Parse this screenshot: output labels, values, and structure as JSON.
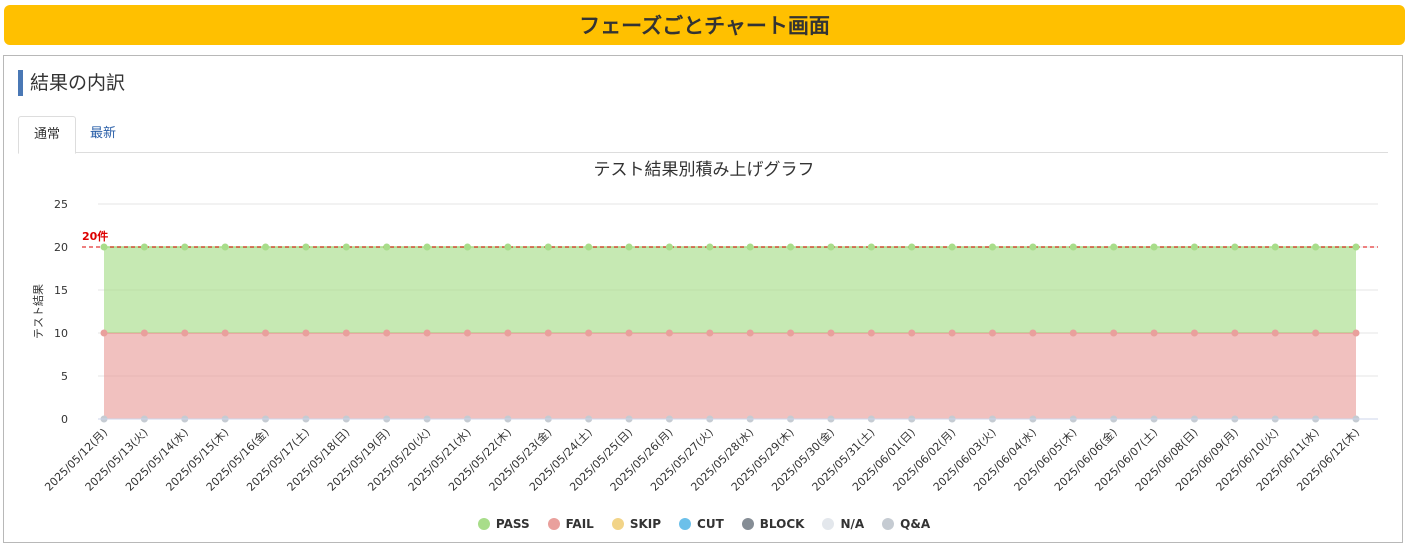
{
  "header": {
    "title": "フェーズごとチャート画面"
  },
  "section": {
    "title": "結果の内訳"
  },
  "tabs": [
    {
      "label": "通常",
      "active": true
    },
    {
      "label": "最新",
      "active": false
    }
  ],
  "colors": {
    "banner": "#ffc000",
    "accent_bar": "#4a78b5",
    "threshold": "#dd0000",
    "grid": "#e6e6e6"
  },
  "chart_data": {
    "type": "area",
    "stacked": true,
    "title": "テスト結果別積み上げグラフ",
    "xlabel": "",
    "ylabel": "テスト結果",
    "ylim": [
      0,
      25
    ],
    "yticks": [
      0,
      5,
      10,
      15,
      20,
      25
    ],
    "grid": true,
    "legend_position": "bottom",
    "threshold": {
      "value": 20,
      "label": "20件"
    },
    "categories": [
      "2025/05/12(月)",
      "2025/05/13(火)",
      "2025/05/14(水)",
      "2025/05/15(木)",
      "2025/05/16(金)",
      "2025/05/17(土)",
      "2025/05/18(日)",
      "2025/05/19(月)",
      "2025/05/20(火)",
      "2025/05/21(水)",
      "2025/05/22(木)",
      "2025/05/23(金)",
      "2025/05/24(土)",
      "2025/05/25(日)",
      "2025/05/26(月)",
      "2025/05/27(火)",
      "2025/05/28(水)",
      "2025/05/29(木)",
      "2025/05/30(金)",
      "2025/05/31(土)",
      "2025/06/01(日)",
      "2025/06/02(月)",
      "2025/06/03(火)",
      "2025/06/04(水)",
      "2025/06/05(木)",
      "2025/06/06(金)",
      "2025/06/07(土)",
      "2025/06/08(日)",
      "2025/06/09(月)",
      "2025/06/10(火)",
      "2025/06/11(水)",
      "2025/06/12(木)"
    ],
    "series": [
      {
        "name": "PASS",
        "color": "#a8dd8a",
        "values": [
          10,
          10,
          10,
          10,
          10,
          10,
          10,
          10,
          10,
          10,
          10,
          10,
          10,
          10,
          10,
          10,
          10,
          10,
          10,
          10,
          10,
          10,
          10,
          10,
          10,
          10,
          10,
          10,
          10,
          10,
          10,
          10
        ]
      },
      {
        "name": "FAIL",
        "color": "#e9a09c",
        "values": [
          10,
          10,
          10,
          10,
          10,
          10,
          10,
          10,
          10,
          10,
          10,
          10,
          10,
          10,
          10,
          10,
          10,
          10,
          10,
          10,
          10,
          10,
          10,
          10,
          10,
          10,
          10,
          10,
          10,
          10,
          10,
          10
        ]
      },
      {
        "name": "SKIP",
        "color": "#f2d488",
        "values": [
          0,
          0,
          0,
          0,
          0,
          0,
          0,
          0,
          0,
          0,
          0,
          0,
          0,
          0,
          0,
          0,
          0,
          0,
          0,
          0,
          0,
          0,
          0,
          0,
          0,
          0,
          0,
          0,
          0,
          0,
          0,
          0
        ]
      },
      {
        "name": "CUT",
        "color": "#6cc0ea",
        "values": [
          0,
          0,
          0,
          0,
          0,
          0,
          0,
          0,
          0,
          0,
          0,
          0,
          0,
          0,
          0,
          0,
          0,
          0,
          0,
          0,
          0,
          0,
          0,
          0,
          0,
          0,
          0,
          0,
          0,
          0,
          0,
          0
        ]
      },
      {
        "name": "BLOCK",
        "color": "#858d95",
        "values": [
          0,
          0,
          0,
          0,
          0,
          0,
          0,
          0,
          0,
          0,
          0,
          0,
          0,
          0,
          0,
          0,
          0,
          0,
          0,
          0,
          0,
          0,
          0,
          0,
          0,
          0,
          0,
          0,
          0,
          0,
          0,
          0
        ]
      },
      {
        "name": "N/A",
        "color": "#e3e7ec",
        "values": [
          0,
          0,
          0,
          0,
          0,
          0,
          0,
          0,
          0,
          0,
          0,
          0,
          0,
          0,
          0,
          0,
          0,
          0,
          0,
          0,
          0,
          0,
          0,
          0,
          0,
          0,
          0,
          0,
          0,
          0,
          0,
          0
        ]
      },
      {
        "name": "Q&A",
        "color": "#c5cbd2",
        "values": [
          0,
          0,
          0,
          0,
          0,
          0,
          0,
          0,
          0,
          0,
          0,
          0,
          0,
          0,
          0,
          0,
          0,
          0,
          0,
          0,
          0,
          0,
          0,
          0,
          0,
          0,
          0,
          0,
          0,
          0,
          0,
          0
        ]
      }
    ]
  }
}
